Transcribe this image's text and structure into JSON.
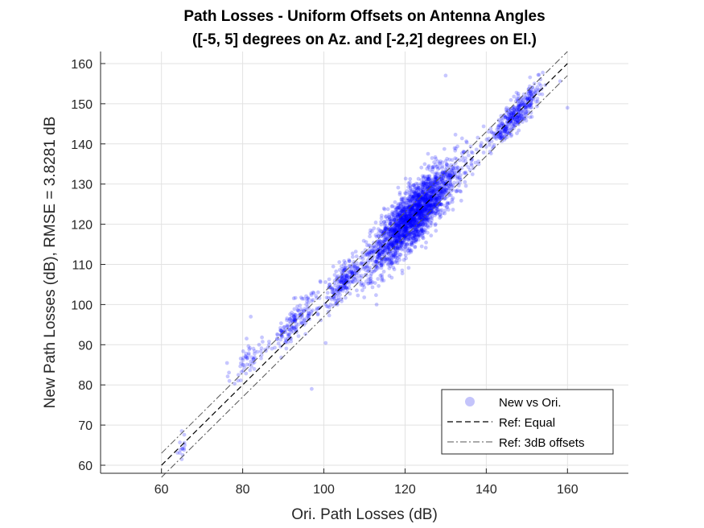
{
  "chart_data": {
    "type": "scatter",
    "title": "Path Losses - Uniform Offsets on Antenna Angles",
    "subtitle": "([-5, 5] degrees on Az. and [-2,2] degrees on El.)",
    "xlabel": "Ori. Path Losses (dB)",
    "ylabel": "New Path Losses (dB), RMSE = 3.8281 dB",
    "xlim": [
      45,
      175
    ],
    "ylim": [
      58,
      163
    ],
    "xticks": [
      60,
      80,
      100,
      120,
      140,
      160
    ],
    "yticks": [
      60,
      70,
      80,
      90,
      100,
      110,
      120,
      130,
      140,
      150,
      160
    ],
    "grid": true,
    "legend_position": "bottom-right",
    "legend": [
      "New vs Ori.",
      "Ref: Equal",
      "Ref: 3dB offsets"
    ],
    "series": [
      {
        "name": "New vs Ori.",
        "kind": "scatter",
        "color": "#0000ff",
        "clusters": [
          {
            "x": 65,
            "y": 65,
            "sx": 0.6,
            "sy": 2.5,
            "n": 12
          },
          {
            "x": 81,
            "y": 86,
            "sx": 2.0,
            "sy": 4.0,
            "n": 55
          },
          {
            "x": 93,
            "y": 96,
            "sx": 3.0,
            "sy": 4.0,
            "n": 170
          },
          {
            "x": 105,
            "y": 106,
            "sx": 2.5,
            "sy": 4.0,
            "n": 220
          },
          {
            "x": 122,
            "y": 122,
            "sx": 5.5,
            "sy": 6.5,
            "n": 2300
          },
          {
            "x": 147,
            "y": 147,
            "sx": 3.0,
            "sy": 3.5,
            "n": 380
          }
        ],
        "points": [
          [
            65,
            61.5
          ],
          [
            65,
            68.5
          ],
          [
            160,
            149
          ],
          [
            82,
            97
          ],
          [
            130,
            157
          ],
          [
            113,
            100
          ],
          [
            97,
            79
          ]
        ]
      },
      {
        "name": "Ref: Equal",
        "kind": "line",
        "color": "#000000",
        "dash": "dashed",
        "x": [
          60,
          160
        ],
        "y": [
          60,
          160
        ]
      },
      {
        "name": "Ref: 3dB offsets",
        "kind": "line",
        "color": "#555555",
        "dash": "dashdot",
        "offsets": [
          3,
          -3
        ],
        "x": [
          60,
          160
        ]
      }
    ]
  }
}
